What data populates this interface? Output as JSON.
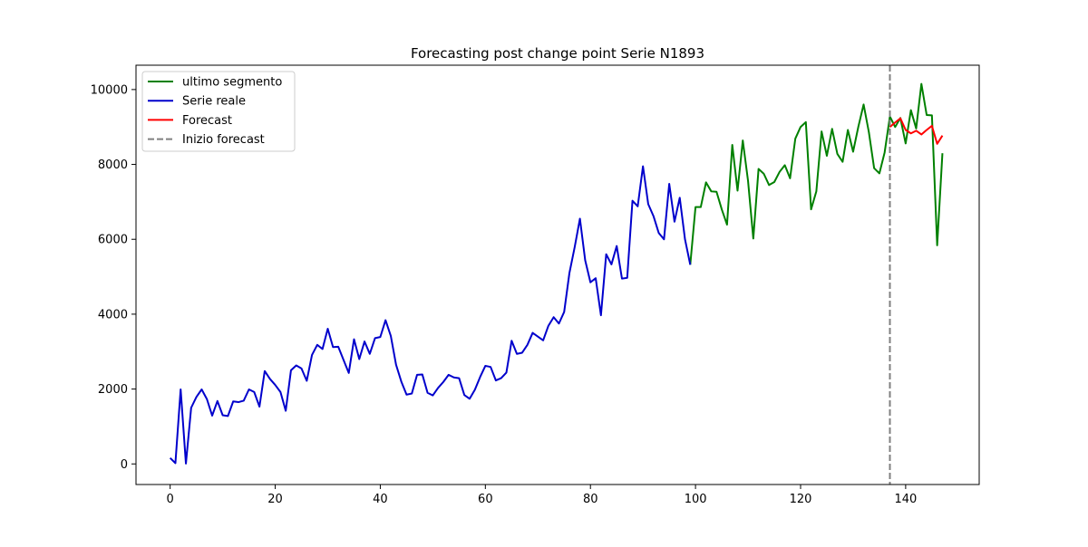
{
  "chart_data": {
    "type": "line",
    "title": "Forecasting post change point Serie N1893",
    "xlabel": "",
    "ylabel": "",
    "xlim": [
      -6.5,
      154
    ],
    "ylim": [
      -550,
      10650
    ],
    "xticks": [
      0,
      20,
      40,
      60,
      80,
      100,
      120,
      140
    ],
    "yticks": [
      0,
      2000,
      4000,
      6000,
      8000,
      10000
    ],
    "grid": false,
    "legend_position": "upper-left",
    "colors": {
      "ultimo_segmento": "#008000",
      "serie_reale": "#0000cc",
      "forecast": "#ff0000",
      "inizio_forecast": "#808080"
    },
    "series": [
      {
        "name": "ultimo segmento",
        "key": "ultimo_segmento",
        "style": "solid",
        "x_start": 99,
        "values": [
          5320,
          6860,
          6860,
          7520,
          7280,
          7270,
          6800,
          6390,
          8520,
          7300,
          8640,
          7560,
          6020,
          7880,
          7750,
          7450,
          7530,
          7800,
          7980,
          7630,
          8690,
          9000,
          9130,
          6800,
          7280,
          8880,
          8230,
          8950,
          8280,
          8070,
          8920,
          8340,
          9010,
          9600,
          8860,
          7900,
          7760,
          8320,
          9280,
          9000,
          9240,
          8560,
          9450,
          8960,
          10150,
          9320,
          9310,
          5840,
          8300
        ]
      },
      {
        "name": "Serie reale",
        "key": "serie_reale",
        "style": "solid",
        "x_start": 0,
        "values": [
          160,
          20,
          1990,
          10,
          1500,
          1790,
          1990,
          1730,
          1290,
          1680,
          1300,
          1280,
          1670,
          1650,
          1690,
          1990,
          1920,
          1530,
          2480,
          2270,
          2110,
          1920,
          1420,
          2500,
          2630,
          2550,
          2220,
          2910,
          3180,
          3070,
          3610,
          3120,
          3130,
          2780,
          2430,
          3330,
          2800,
          3270,
          2940,
          3360,
          3390,
          3840,
          3420,
          2650,
          2200,
          1850,
          1880,
          2380,
          2390,
          1900,
          1830,
          2030,
          2190,
          2380,
          2310,
          2290,
          1840,
          1740,
          1980,
          2320,
          2620,
          2590,
          2230,
          2290,
          2440,
          3290,
          2940,
          2970,
          3180,
          3500,
          3400,
          3300,
          3690,
          3920,
          3750,
          4060,
          5100,
          5790,
          6550,
          5440,
          4850,
          4960,
          3970,
          5600,
          5330,
          5820,
          4950,
          4970,
          7030,
          6880,
          7950,
          6940,
          6620,
          6170,
          6000,
          7480,
          6470,
          7110,
          6000,
          5320
        ]
      },
      {
        "name": "Forecast",
        "key": "forecast",
        "style": "solid",
        "x_start": 137,
        "values": [
          9000,
          9120,
          9230,
          8920,
          8830,
          8900,
          8800,
          8920,
          9030,
          8550,
          8770
        ]
      }
    ],
    "vlines": [
      {
        "name": "Inizio forecast",
        "key": "inizio_forecast",
        "style": "dashed",
        "x": 137
      }
    ],
    "legend": [
      "ultimo segmento",
      "Serie reale",
      "Forecast",
      "Inizio forecast"
    ]
  }
}
